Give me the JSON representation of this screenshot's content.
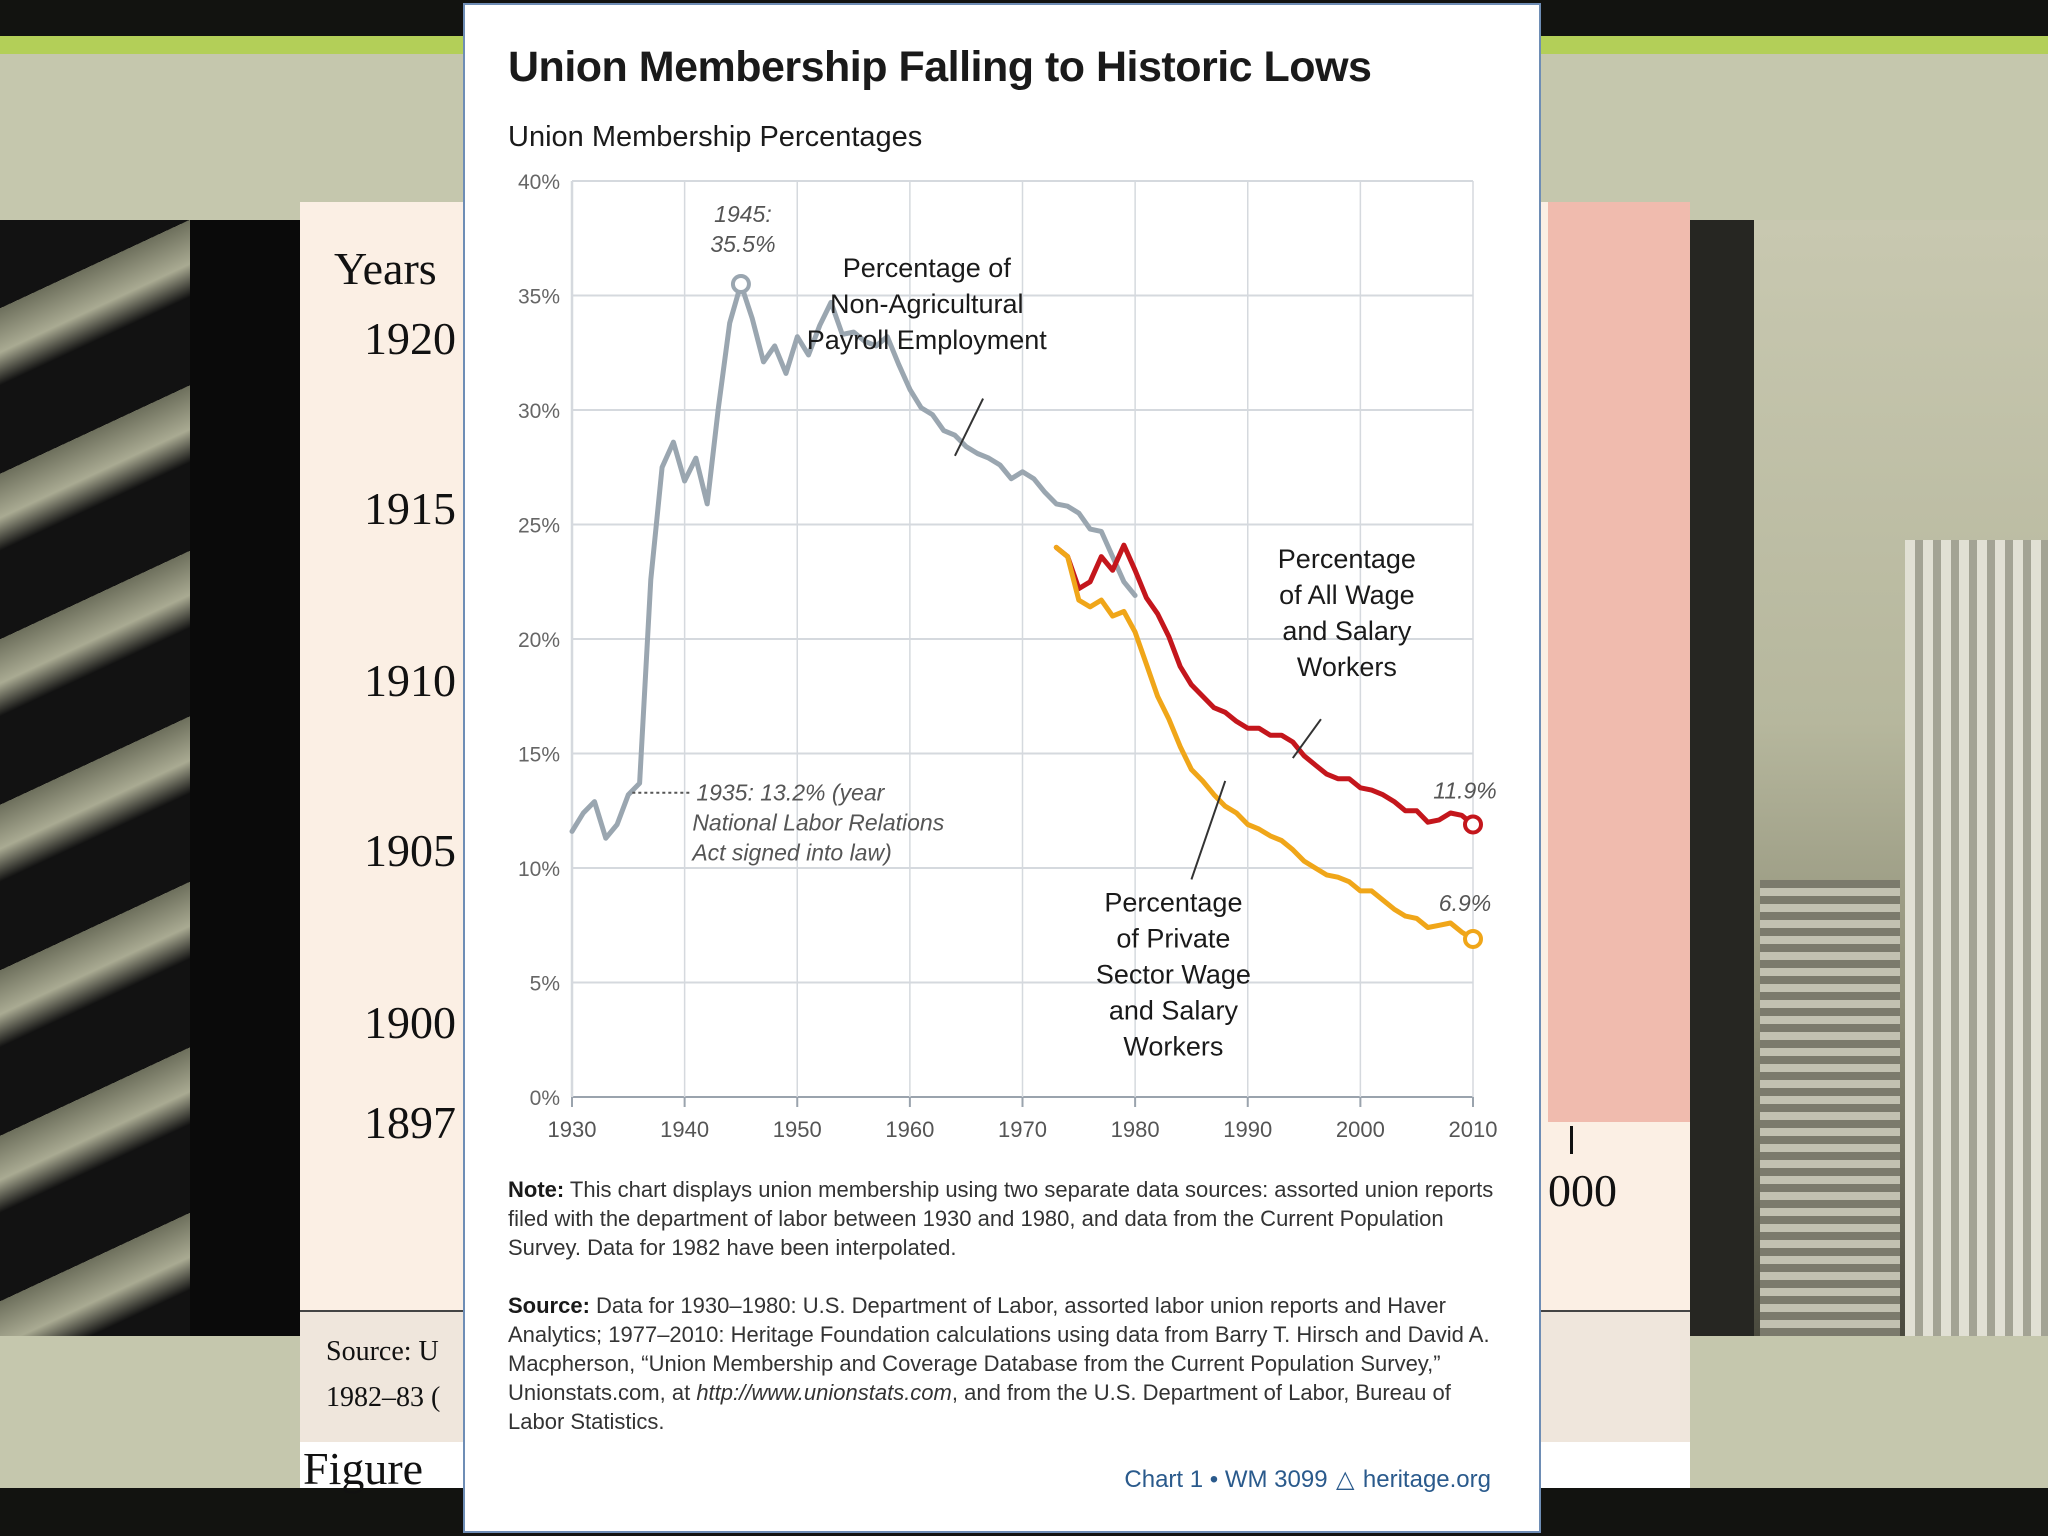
{
  "background_slide": {
    "heading": "Years",
    "years": [
      "1920",
      "1915",
      "1910",
      "1905",
      "1900",
      "1897"
    ],
    "axis_fragment": "000",
    "source_fragment": "Source: U",
    "source_fragment2": "1982–83 (",
    "figure_fragment": "Figure "
  },
  "card": {
    "title": "Union Membership Falling to Historic Lows",
    "subtitle": "Union Membership Percentages",
    "note_label": "Note:",
    "note_text": " This chart displays union membership using two separate data sources: assorted union reports filed with the department of labor between 1930 and 1980, and data from the Current Population Survey. Data for 1982 have been interpolated.",
    "source_label": "Source:",
    "source_text_1": " Data for 1930–1980: U.S. Department of Labor, assorted labor union reports and Haver Analytics; 1977–2010: Heritage Foundation calculations using data from Barry T. Hirsch and David A. Macpherson, “Union Membership and Coverage Database from the Current Population Survey,” Unionstats.com, at ",
    "source_url": "http://www.unionstats.com",
    "source_text_2": ", and from the U.S. Department of Labor, Bureau of Labor Statistics.",
    "credit_left": "Chart 1 • WM 3099",
    "credit_right": "heritage.org"
  },
  "chart_data": {
    "type": "line",
    "title": "Union Membership Falling to Historic Lows",
    "subtitle": "Union Membership Percentages",
    "xlabel": "",
    "ylabel": "",
    "xlim": [
      1930,
      2010
    ],
    "ylim": [
      0,
      40
    ],
    "x_ticks": [
      "1930",
      "1940",
      "1950",
      "1960",
      "1970",
      "1980",
      "1990",
      "2000",
      "2010"
    ],
    "y_ticks": [
      "0%",
      "5%",
      "10%",
      "15%",
      "20%",
      "25%",
      "30%",
      "35%",
      "40%"
    ],
    "grid": "horizontal",
    "colors": {
      "nonag": "#9aa6b0",
      "all": "#c4161c",
      "private": "#f0a619"
    },
    "series": [
      {
        "name": "Percentage of Non-Agricultural Payroll Employment",
        "key": "nonag",
        "x": [
          1930,
          1931,
          1932,
          1933,
          1934,
          1935,
          1936,
          1937,
          1938,
          1939,
          1940,
          1941,
          1942,
          1943,
          1944,
          1945,
          1946,
          1947,
          1948,
          1949,
          1950,
          1951,
          1952,
          1953,
          1954,
          1955,
          1956,
          1957,
          1958,
          1959,
          1960,
          1961,
          1962,
          1963,
          1964,
          1965,
          1966,
          1967,
          1968,
          1969,
          1970,
          1971,
          1972,
          1973,
          1974,
          1975,
          1976,
          1977,
          1978,
          1979,
          1980
        ],
        "y": [
          11.6,
          12.4,
          12.9,
          11.3,
          11.9,
          13.2,
          13.7,
          22.6,
          27.5,
          28.6,
          26.9,
          27.9,
          25.9,
          30.1,
          33.8,
          35.5,
          34.0,
          32.1,
          32.8,
          31.6,
          33.2,
          32.4,
          33.7,
          34.7,
          33.3,
          33.4,
          33.0,
          32.8,
          33.2,
          32.0,
          30.9,
          30.1,
          29.8,
          29.1,
          28.9,
          28.4,
          28.1,
          27.9,
          27.6,
          27.0,
          27.3,
          27.0,
          26.4,
          25.9,
          25.8,
          25.5,
          24.8,
          24.7,
          23.6,
          22.5,
          21.9
        ]
      },
      {
        "name": "Percentage of All Wage and Salary Workers",
        "key": "all",
        "x": [
          1973,
          1974,
          1975,
          1976,
          1977,
          1978,
          1979,
          1980,
          1981,
          1982,
          1983,
          1984,
          1985,
          1986,
          1987,
          1988,
          1989,
          1990,
          1991,
          1992,
          1993,
          1994,
          1995,
          1996,
          1997,
          1998,
          1999,
          2000,
          2001,
          2002,
          2003,
          2004,
          2005,
          2006,
          2007,
          2008,
          2009,
          2010
        ],
        "y": [
          24.0,
          23.6,
          22.2,
          22.5,
          23.6,
          23.0,
          24.1,
          23.0,
          21.8,
          21.1,
          20.1,
          18.8,
          18.0,
          17.5,
          17.0,
          16.8,
          16.4,
          16.1,
          16.1,
          15.8,
          15.8,
          15.5,
          14.9,
          14.5,
          14.1,
          13.9,
          13.9,
          13.5,
          13.4,
          13.2,
          12.9,
          12.5,
          12.5,
          12.0,
          12.1,
          12.4,
          12.3,
          11.9
        ]
      },
      {
        "name": "Percentage of Private Sector Wage and Salary Workers",
        "key": "private",
        "x": [
          1973,
          1974,
          1975,
          1976,
          1977,
          1978,
          1979,
          1980,
          1981,
          1982,
          1983,
          1984,
          1985,
          1986,
          1987,
          1988,
          1989,
          1990,
          1991,
          1992,
          1993,
          1994,
          1995,
          1996,
          1997,
          1998,
          1999,
          2000,
          2001,
          2002,
          2003,
          2004,
          2005,
          2006,
          2007,
          2008,
          2009,
          2010
        ],
        "y": [
          24.0,
          23.6,
          21.7,
          21.4,
          21.7,
          21.0,
          21.2,
          20.3,
          18.9,
          17.5,
          16.5,
          15.3,
          14.3,
          13.8,
          13.2,
          12.7,
          12.4,
          11.9,
          11.7,
          11.4,
          11.2,
          10.8,
          10.3,
          10.0,
          9.7,
          9.6,
          9.4,
          9.0,
          9.0,
          8.6,
          8.2,
          7.9,
          7.8,
          7.4,
          7.5,
          7.6,
          7.2,
          6.9
        ]
      }
    ],
    "annotations": [
      {
        "text_lines": [
          "1945:",
          "35.5%"
        ],
        "x": 1945,
        "y": 35.5,
        "style": "italic"
      },
      {
        "text_lines": [
          "1935: 13.2% (year",
          "National Labor Relations",
          "Act signed into law)"
        ],
        "x": 1935,
        "y": 13.2,
        "style": "italic"
      },
      {
        "text_lines": [
          "11.9%"
        ],
        "x": 2010,
        "y": 11.9,
        "style": "italic"
      },
      {
        "text_lines": [
          "6.9%"
        ],
        "x": 2010,
        "y": 6.9,
        "style": "italic"
      }
    ],
    "series_labels": [
      {
        "key": "nonag",
        "text_lines": [
          "Percentage of",
          "Non-Agricultural",
          "Payroll Employment"
        ]
      },
      {
        "key": "all",
        "text_lines": [
          "Percentage",
          "of All Wage",
          "and Salary",
          "Workers"
        ]
      },
      {
        "key": "private",
        "text_lines": [
          "Percentage",
          "of Private",
          "Sector Wage",
          "and Salary",
          "Workers"
        ]
      }
    ]
  }
}
